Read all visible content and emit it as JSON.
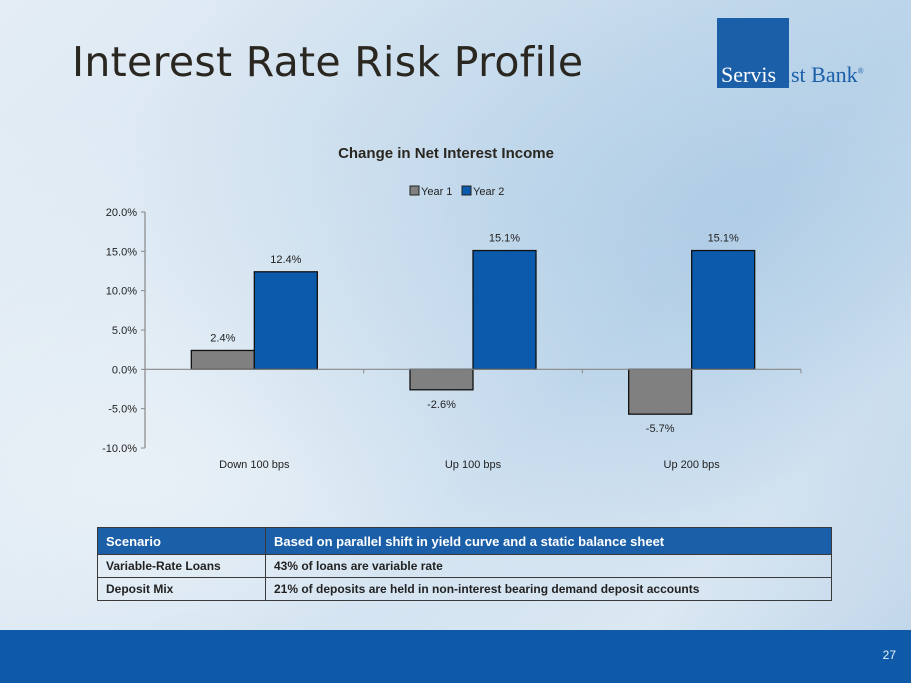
{
  "slide": {
    "title": "Interest Rate Risk Profile",
    "page_number": "27"
  },
  "logo": {
    "part1": "Servis",
    "part2": "1st Bank",
    "mark": "®",
    "brand_color": "#1a5fa8"
  },
  "chart_data": {
    "type": "bar",
    "title": "Change in Net Interest Income",
    "xlabel": "",
    "ylabel": "",
    "categories": [
      "Down 100 bps",
      "Up 100 bps",
      "Up 200 bps"
    ],
    "series": [
      {
        "name": "Year 1",
        "values": [
          2.4,
          -2.6,
          -5.7
        ],
        "labels": [
          "2.4%",
          "-2.6%",
          "-5.7%"
        ],
        "color": "#808080"
      },
      {
        "name": "Year 2",
        "values": [
          12.4,
          15.1,
          15.1
        ],
        "labels": [
          "12.4%",
          "15.1%",
          "15.1%"
        ],
        "color": "#0b5aab"
      }
    ],
    "ylim": [
      -10,
      20
    ],
    "yticks": [
      20,
      15,
      10,
      5,
      0,
      -5,
      -10
    ],
    "ytick_labels": [
      "20.0%",
      "15.0%",
      "10.0%",
      "5.0%",
      "0.0%",
      "-5.0%",
      "-10.0%"
    ],
    "grid": false,
    "legend": "top-center"
  },
  "table": {
    "header": {
      "label": "Scenario",
      "value": "Based on parallel shift in yield curve and a static balance sheet"
    },
    "rows": [
      {
        "label": "Variable-Rate Loans",
        "value": "43% of loans are variable rate"
      },
      {
        "label": "Deposit Mix",
        "value": "21% of deposits are held in non-interest bearing demand deposit accounts"
      }
    ]
  }
}
